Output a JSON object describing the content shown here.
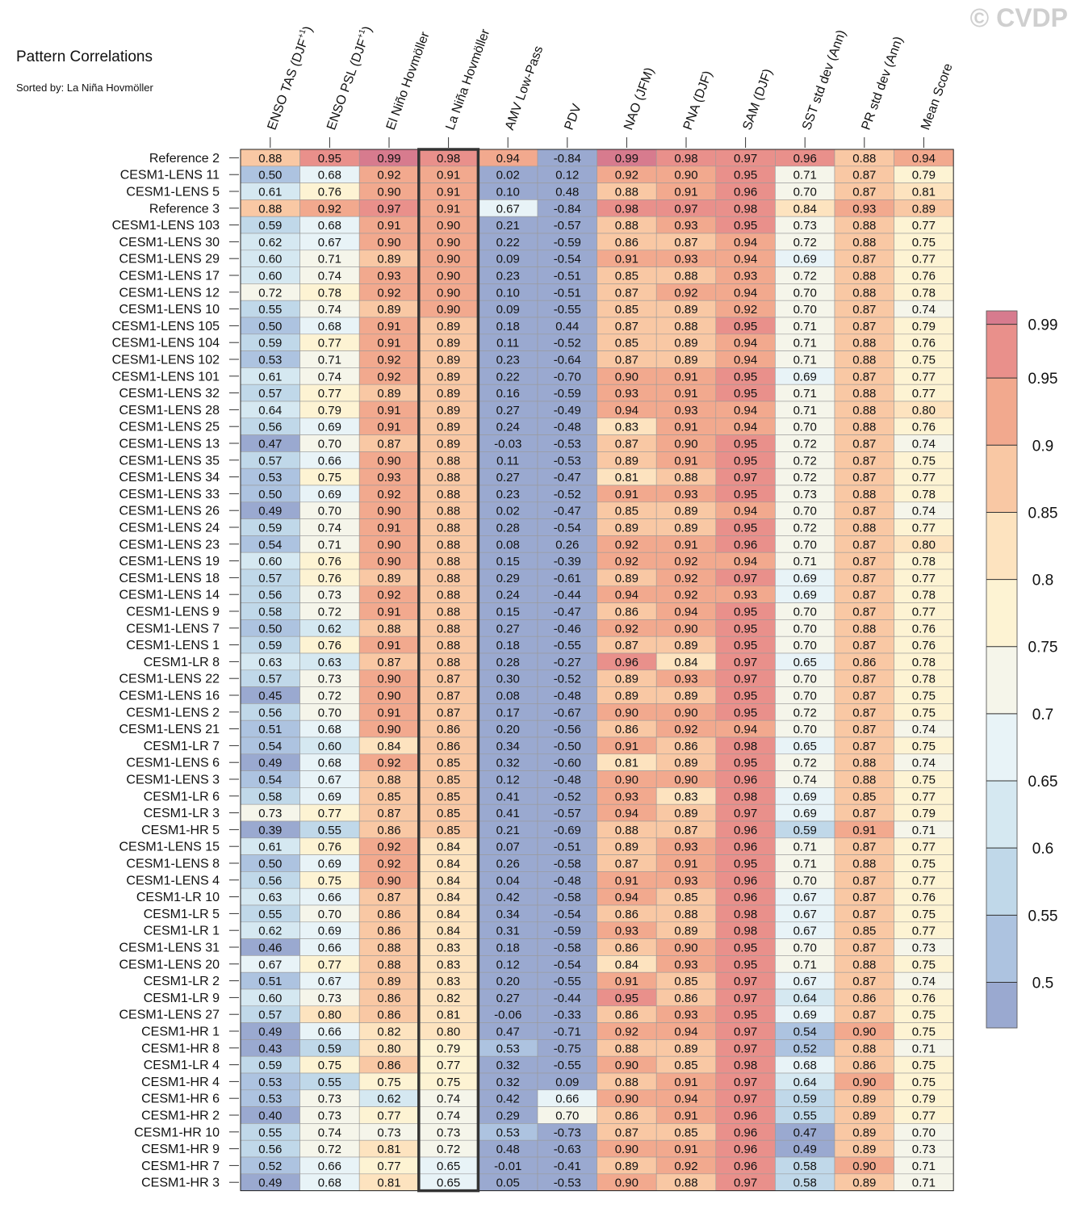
{
  "header": {
    "title": "Pattern Correlations",
    "subtitle": "Sorted by: La Niña Hovmöller",
    "watermark": "© CVDP"
  },
  "chart_data": {
    "type": "heatmap",
    "title": "Pattern Correlations",
    "subtitle": "Sorted by: La Niña Hovmöller",
    "highlighted_column": "La Niña Hovmöller",
    "columns": [
      {
        "label": "ENSO TAS (DJF",
        "sup": "+1",
        "suffix": ")"
      },
      {
        "label": "ENSO PSL (DJF",
        "sup": "+1",
        "suffix": ")"
      },
      {
        "label": "El Niño Hovmöller"
      },
      {
        "label": "La Niña Hovmöller"
      },
      {
        "label": "AMV Low-Pass"
      },
      {
        "label": "PDV"
      },
      {
        "label": "NAO (JFM)"
      },
      {
        "label": "PNA (DJF)"
      },
      {
        "label": "SAM (DJF)"
      },
      {
        "label": "SST std dev (Ann)"
      },
      {
        "label": "PR std dev (Ann)"
      },
      {
        "label": "Mean Score"
      }
    ],
    "rows": [
      {
        "name": "Reference 2",
        "values": [
          "0.88",
          "0.95",
          "0.99",
          "0.98",
          "0.94",
          "-0.84",
          "0.99",
          "0.98",
          "0.97",
          "0.96",
          "0.88",
          "0.94"
        ]
      },
      {
        "name": "CESM1-LENS 11",
        "values": [
          "0.50",
          "0.68",
          "0.92",
          "0.91",
          "0.02",
          "0.12",
          "0.92",
          "0.90",
          "0.95",
          "0.71",
          "0.87",
          "0.79"
        ]
      },
      {
        "name": "CESM1-LENS 5",
        "values": [
          "0.61",
          "0.76",
          "0.90",
          "0.91",
          "0.10",
          "0.48",
          "0.88",
          "0.91",
          "0.96",
          "0.70",
          "0.87",
          "0.81"
        ]
      },
      {
        "name": "Reference 3",
        "values": [
          "0.88",
          "0.92",
          "0.97",
          "0.91",
          "0.67",
          "-0.84",
          "0.98",
          "0.97",
          "0.98",
          "0.84",
          "0.93",
          "0.89"
        ]
      },
      {
        "name": "CESM1-LENS 103",
        "values": [
          "0.59",
          "0.68",
          "0.91",
          "0.90",
          "0.21",
          "-0.57",
          "0.88",
          "0.93",
          "0.95",
          "0.73",
          "0.88",
          "0.77"
        ]
      },
      {
        "name": "CESM1-LENS 30",
        "values": [
          "0.62",
          "0.67",
          "0.90",
          "0.90",
          "0.22",
          "-0.59",
          "0.86",
          "0.87",
          "0.94",
          "0.72",
          "0.88",
          "0.75"
        ]
      },
      {
        "name": "CESM1-LENS 29",
        "values": [
          "0.60",
          "0.71",
          "0.89",
          "0.90",
          "0.09",
          "-0.54",
          "0.91",
          "0.93",
          "0.94",
          "0.69",
          "0.87",
          "0.77"
        ]
      },
      {
        "name": "CESM1-LENS 17",
        "values": [
          "0.60",
          "0.74",
          "0.93",
          "0.90",
          "0.23",
          "-0.51",
          "0.85",
          "0.88",
          "0.93",
          "0.72",
          "0.88",
          "0.76"
        ]
      },
      {
        "name": "CESM1-LENS 12",
        "values": [
          "0.72",
          "0.78",
          "0.92",
          "0.90",
          "0.10",
          "-0.51",
          "0.87",
          "0.92",
          "0.94",
          "0.70",
          "0.88",
          "0.78"
        ]
      },
      {
        "name": "CESM1-LENS 10",
        "values": [
          "0.55",
          "0.74",
          "0.89",
          "0.90",
          "0.09",
          "-0.55",
          "0.85",
          "0.89",
          "0.92",
          "0.70",
          "0.87",
          "0.74"
        ]
      },
      {
        "name": "CESM1-LENS 105",
        "values": [
          "0.50",
          "0.68",
          "0.91",
          "0.89",
          "0.18",
          "0.44",
          "0.87",
          "0.88",
          "0.95",
          "0.71",
          "0.87",
          "0.79"
        ]
      },
      {
        "name": "CESM1-LENS 104",
        "values": [
          "0.59",
          "0.77",
          "0.91",
          "0.89",
          "0.11",
          "-0.52",
          "0.85",
          "0.89",
          "0.94",
          "0.71",
          "0.88",
          "0.76"
        ]
      },
      {
        "name": "CESM1-LENS 102",
        "values": [
          "0.53",
          "0.71",
          "0.92",
          "0.89",
          "0.23",
          "-0.64",
          "0.87",
          "0.89",
          "0.94",
          "0.71",
          "0.88",
          "0.75"
        ]
      },
      {
        "name": "CESM1-LENS 101",
        "values": [
          "0.61",
          "0.74",
          "0.92",
          "0.89",
          "0.22",
          "-0.70",
          "0.90",
          "0.91",
          "0.95",
          "0.69",
          "0.87",
          "0.77"
        ]
      },
      {
        "name": "CESM1-LENS 32",
        "values": [
          "0.57",
          "0.77",
          "0.89",
          "0.89",
          "0.16",
          "-0.59",
          "0.93",
          "0.91",
          "0.95",
          "0.71",
          "0.88",
          "0.77"
        ]
      },
      {
        "name": "CESM1-LENS 28",
        "values": [
          "0.64",
          "0.79",
          "0.91",
          "0.89",
          "0.27",
          "-0.49",
          "0.94",
          "0.93",
          "0.94",
          "0.71",
          "0.88",
          "0.80"
        ]
      },
      {
        "name": "CESM1-LENS 25",
        "values": [
          "0.56",
          "0.69",
          "0.91",
          "0.89",
          "0.24",
          "-0.48",
          "0.83",
          "0.91",
          "0.94",
          "0.70",
          "0.88",
          "0.76"
        ]
      },
      {
        "name": "CESM1-LENS 13",
        "values": [
          "0.47",
          "0.70",
          "0.87",
          "0.89",
          "-0.03",
          "-0.53",
          "0.87",
          "0.90",
          "0.95",
          "0.72",
          "0.87",
          "0.74"
        ]
      },
      {
        "name": "CESM1-LENS 35",
        "values": [
          "0.57",
          "0.66",
          "0.90",
          "0.88",
          "0.11",
          "-0.53",
          "0.89",
          "0.91",
          "0.95",
          "0.72",
          "0.87",
          "0.75"
        ]
      },
      {
        "name": "CESM1-LENS 34",
        "values": [
          "0.53",
          "0.75",
          "0.93",
          "0.88",
          "0.27",
          "-0.47",
          "0.81",
          "0.88",
          "0.97",
          "0.72",
          "0.87",
          "0.77"
        ]
      },
      {
        "name": "CESM1-LENS 33",
        "values": [
          "0.50",
          "0.69",
          "0.92",
          "0.88",
          "0.23",
          "-0.52",
          "0.91",
          "0.93",
          "0.95",
          "0.73",
          "0.88",
          "0.78"
        ]
      },
      {
        "name": "CESM1-LENS 26",
        "values": [
          "0.49",
          "0.70",
          "0.90",
          "0.88",
          "0.02",
          "-0.47",
          "0.85",
          "0.89",
          "0.94",
          "0.70",
          "0.87",
          "0.74"
        ]
      },
      {
        "name": "CESM1-LENS 24",
        "values": [
          "0.59",
          "0.74",
          "0.91",
          "0.88",
          "0.28",
          "-0.54",
          "0.89",
          "0.89",
          "0.95",
          "0.72",
          "0.88",
          "0.77"
        ]
      },
      {
        "name": "CESM1-LENS 23",
        "values": [
          "0.54",
          "0.71",
          "0.90",
          "0.88",
          "0.08",
          "0.26",
          "0.92",
          "0.91",
          "0.96",
          "0.70",
          "0.87",
          "0.80"
        ]
      },
      {
        "name": "CESM1-LENS 19",
        "values": [
          "0.60",
          "0.76",
          "0.90",
          "0.88",
          "0.15",
          "-0.39",
          "0.92",
          "0.92",
          "0.94",
          "0.71",
          "0.87",
          "0.78"
        ]
      },
      {
        "name": "CESM1-LENS 18",
        "values": [
          "0.57",
          "0.76",
          "0.89",
          "0.88",
          "0.29",
          "-0.61",
          "0.89",
          "0.92",
          "0.97",
          "0.69",
          "0.87",
          "0.77"
        ]
      },
      {
        "name": "CESM1-LENS 14",
        "values": [
          "0.56",
          "0.73",
          "0.92",
          "0.88",
          "0.24",
          "-0.44",
          "0.94",
          "0.92",
          "0.93",
          "0.69",
          "0.87",
          "0.78"
        ]
      },
      {
        "name": "CESM1-LENS 9",
        "values": [
          "0.58",
          "0.72",
          "0.91",
          "0.88",
          "0.15",
          "-0.47",
          "0.86",
          "0.94",
          "0.95",
          "0.70",
          "0.87",
          "0.77"
        ]
      },
      {
        "name": "CESM1-LENS 7",
        "values": [
          "0.50",
          "0.62",
          "0.88",
          "0.88",
          "0.27",
          "-0.46",
          "0.92",
          "0.90",
          "0.95",
          "0.70",
          "0.88",
          "0.76"
        ]
      },
      {
        "name": "CESM1-LENS 1",
        "values": [
          "0.59",
          "0.76",
          "0.91",
          "0.88",
          "0.18",
          "-0.55",
          "0.87",
          "0.89",
          "0.95",
          "0.70",
          "0.87",
          "0.76"
        ]
      },
      {
        "name": "CESM1-LR 8",
        "values": [
          "0.63",
          "0.63",
          "0.87",
          "0.88",
          "0.28",
          "-0.27",
          "0.96",
          "0.84",
          "0.97",
          "0.65",
          "0.86",
          "0.78"
        ]
      },
      {
        "name": "CESM1-LENS 22",
        "values": [
          "0.57",
          "0.73",
          "0.90",
          "0.87",
          "0.30",
          "-0.52",
          "0.89",
          "0.93",
          "0.97",
          "0.70",
          "0.87",
          "0.78"
        ]
      },
      {
        "name": "CESM1-LENS 16",
        "values": [
          "0.45",
          "0.72",
          "0.90",
          "0.87",
          "0.08",
          "-0.48",
          "0.89",
          "0.89",
          "0.95",
          "0.70",
          "0.87",
          "0.75"
        ]
      },
      {
        "name": "CESM1-LENS 2",
        "values": [
          "0.56",
          "0.70",
          "0.91",
          "0.87",
          "0.17",
          "-0.67",
          "0.90",
          "0.90",
          "0.95",
          "0.72",
          "0.87",
          "0.75"
        ]
      },
      {
        "name": "CESM1-LENS 21",
        "values": [
          "0.51",
          "0.68",
          "0.90",
          "0.86",
          "0.20",
          "-0.56",
          "0.86",
          "0.92",
          "0.94",
          "0.70",
          "0.87",
          "0.74"
        ]
      },
      {
        "name": "CESM1-LR 7",
        "values": [
          "0.54",
          "0.60",
          "0.84",
          "0.86",
          "0.34",
          "-0.50",
          "0.91",
          "0.86",
          "0.98",
          "0.65",
          "0.87",
          "0.75"
        ]
      },
      {
        "name": "CESM1-LENS 6",
        "values": [
          "0.49",
          "0.68",
          "0.92",
          "0.85",
          "0.32",
          "-0.60",
          "0.81",
          "0.89",
          "0.95",
          "0.72",
          "0.88",
          "0.74"
        ]
      },
      {
        "name": "CESM1-LENS 3",
        "values": [
          "0.54",
          "0.67",
          "0.88",
          "0.85",
          "0.12",
          "-0.48",
          "0.90",
          "0.90",
          "0.96",
          "0.74",
          "0.88",
          "0.75"
        ]
      },
      {
        "name": "CESM1-LR 6",
        "values": [
          "0.58",
          "0.69",
          "0.85",
          "0.85",
          "0.41",
          "-0.52",
          "0.93",
          "0.83",
          "0.98",
          "0.69",
          "0.85",
          "0.77"
        ]
      },
      {
        "name": "CESM1-LR 3",
        "values": [
          "0.73",
          "0.77",
          "0.87",
          "0.85",
          "0.41",
          "-0.57",
          "0.94",
          "0.89",
          "0.97",
          "0.69",
          "0.87",
          "0.79"
        ]
      },
      {
        "name": "CESM1-HR 5",
        "values": [
          "0.39",
          "0.55",
          "0.86",
          "0.85",
          "0.21",
          "-0.69",
          "0.88",
          "0.87",
          "0.96",
          "0.59",
          "0.91",
          "0.71"
        ]
      },
      {
        "name": "CESM1-LENS 15",
        "values": [
          "0.61",
          "0.76",
          "0.92",
          "0.84",
          "0.07",
          "-0.51",
          "0.89",
          "0.93",
          "0.96",
          "0.71",
          "0.87",
          "0.77"
        ]
      },
      {
        "name": "CESM1-LENS 8",
        "values": [
          "0.50",
          "0.69",
          "0.92",
          "0.84",
          "0.26",
          "-0.58",
          "0.87",
          "0.91",
          "0.95",
          "0.71",
          "0.88",
          "0.75"
        ]
      },
      {
        "name": "CESM1-LENS 4",
        "values": [
          "0.56",
          "0.75",
          "0.90",
          "0.84",
          "0.04",
          "-0.48",
          "0.91",
          "0.93",
          "0.96",
          "0.70",
          "0.87",
          "0.77"
        ]
      },
      {
        "name": "CESM1-LR 10",
        "values": [
          "0.63",
          "0.66",
          "0.87",
          "0.84",
          "0.42",
          "-0.58",
          "0.94",
          "0.85",
          "0.96",
          "0.67",
          "0.87",
          "0.76"
        ]
      },
      {
        "name": "CESM1-LR 5",
        "values": [
          "0.55",
          "0.70",
          "0.86",
          "0.84",
          "0.34",
          "-0.54",
          "0.86",
          "0.88",
          "0.98",
          "0.67",
          "0.87",
          "0.75"
        ]
      },
      {
        "name": "CESM1-LR 1",
        "values": [
          "0.62",
          "0.69",
          "0.86",
          "0.84",
          "0.31",
          "-0.59",
          "0.93",
          "0.89",
          "0.98",
          "0.67",
          "0.85",
          "0.77"
        ]
      },
      {
        "name": "CESM1-LENS 31",
        "values": [
          "0.46",
          "0.66",
          "0.88",
          "0.83",
          "0.18",
          "-0.58",
          "0.86",
          "0.90",
          "0.95",
          "0.70",
          "0.87",
          "0.73"
        ]
      },
      {
        "name": "CESM1-LENS 20",
        "values": [
          "0.67",
          "0.77",
          "0.88",
          "0.83",
          "0.12",
          "-0.54",
          "0.84",
          "0.93",
          "0.95",
          "0.71",
          "0.88",
          "0.75"
        ]
      },
      {
        "name": "CESM1-LR 2",
        "values": [
          "0.51",
          "0.67",
          "0.89",
          "0.83",
          "0.20",
          "-0.55",
          "0.91",
          "0.85",
          "0.97",
          "0.67",
          "0.87",
          "0.74"
        ]
      },
      {
        "name": "CESM1-LR 9",
        "values": [
          "0.60",
          "0.73",
          "0.86",
          "0.82",
          "0.27",
          "-0.44",
          "0.95",
          "0.86",
          "0.97",
          "0.64",
          "0.86",
          "0.76"
        ]
      },
      {
        "name": "CESM1-LENS 27",
        "values": [
          "0.57",
          "0.80",
          "0.86",
          "0.81",
          "-0.06",
          "-0.33",
          "0.86",
          "0.93",
          "0.95",
          "0.69",
          "0.87",
          "0.75"
        ]
      },
      {
        "name": "CESM1-HR 1",
        "values": [
          "0.49",
          "0.66",
          "0.82",
          "0.80",
          "0.47",
          "-0.71",
          "0.92",
          "0.94",
          "0.97",
          "0.54",
          "0.90",
          "0.75"
        ]
      },
      {
        "name": "CESM1-HR 8",
        "values": [
          "0.43",
          "0.59",
          "0.80",
          "0.79",
          "0.53",
          "-0.75",
          "0.88",
          "0.89",
          "0.97",
          "0.52",
          "0.88",
          "0.71"
        ]
      },
      {
        "name": "CESM1-LR 4",
        "values": [
          "0.59",
          "0.75",
          "0.86",
          "0.77",
          "0.32",
          "-0.55",
          "0.90",
          "0.85",
          "0.98",
          "0.68",
          "0.86",
          "0.75"
        ]
      },
      {
        "name": "CESM1-HR 4",
        "values": [
          "0.53",
          "0.55",
          "0.75",
          "0.75",
          "0.32",
          "0.09",
          "0.88",
          "0.91",
          "0.97",
          "0.64",
          "0.90",
          "0.75"
        ]
      },
      {
        "name": "CESM1-HR 6",
        "values": [
          "0.53",
          "0.73",
          "0.62",
          "0.74",
          "0.42",
          "0.66",
          "0.90",
          "0.94",
          "0.97",
          "0.59",
          "0.89",
          "0.79"
        ]
      },
      {
        "name": "CESM1-HR 2",
        "values": [
          "0.40",
          "0.73",
          "0.77",
          "0.74",
          "0.29",
          "0.70",
          "0.86",
          "0.91",
          "0.96",
          "0.55",
          "0.89",
          "0.77"
        ]
      },
      {
        "name": "CESM1-HR 10",
        "values": [
          "0.55",
          "0.74",
          "0.73",
          "0.73",
          "0.53",
          "-0.73",
          "0.87",
          "0.85",
          "0.96",
          "0.47",
          "0.89",
          "0.70"
        ]
      },
      {
        "name": "CESM1-HR 9",
        "values": [
          "0.56",
          "0.72",
          "0.81",
          "0.72",
          "0.48",
          "-0.63",
          "0.90",
          "0.91",
          "0.96",
          "0.49",
          "0.89",
          "0.73"
        ]
      },
      {
        "name": "CESM1-HR 7",
        "values": [
          "0.52",
          "0.66",
          "0.77",
          "0.65",
          "-0.01",
          "-0.41",
          "0.89",
          "0.92",
          "0.96",
          "0.58",
          "0.90",
          "0.71"
        ]
      },
      {
        "name": "CESM1-HR 3",
        "values": [
          "0.49",
          "0.68",
          "0.81",
          "0.65",
          "0.05",
          "-0.53",
          "0.90",
          "0.88",
          "0.97",
          "0.58",
          "0.89",
          "0.71"
        ]
      }
    ],
    "colorbar": {
      "ticks": [
        "0.99",
        "0.95",
        "0.9",
        "0.85",
        "0.8",
        "0.75",
        "0.7",
        "0.65",
        "0.6",
        "0.55",
        "0.5"
      ],
      "bounds": [
        0.5,
        0.55,
        0.6,
        0.65,
        0.7,
        0.75,
        0.8,
        0.85,
        0.9,
        0.95,
        0.99
      ],
      "colors": [
        "#9aa9d0",
        "#adc3e0",
        "#c0d8e9",
        "#d5e8f1",
        "#e8f3f7",
        "#f5f5ea",
        "#fdf3d3",
        "#fde3bf",
        "#f9c8a4",
        "#f2a98e",
        "#e9908b",
        "#d77b8e"
      ]
    }
  }
}
